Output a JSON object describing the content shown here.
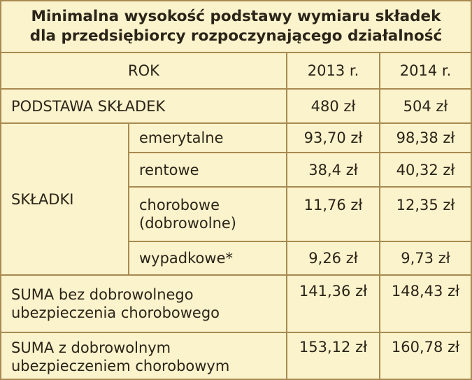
{
  "table": {
    "title_line1": "Minimalna wysokość podstawy wymiaru składek",
    "title_line2": "dla przedsiębiorcy rozpoczynającego działalność",
    "header": {
      "label": "ROK",
      "col2013": "2013 r.",
      "col2014": "2014 r."
    },
    "podstawa": {
      "label": "PODSTAWA SKŁADEK",
      "v2013": "480 zł",
      "v2014": "504 zł"
    },
    "skladki": {
      "label": "SKŁADKI",
      "rows": [
        {
          "label": "emerytalne",
          "v2013": "93,70 zł",
          "v2014": "98,38 zł"
        },
        {
          "label": "rentowe",
          "v2013": "38,4 zł",
          "v2014": "40,32 zł"
        },
        {
          "label_line1": "chorobowe",
          "label_line2": "(dobrowolne)",
          "v2013": "11,76 zł",
          "v2014": "12,35 zł"
        },
        {
          "label": "wypadkowe*",
          "v2013": "9,26 zł",
          "v2014": "9,73 zł"
        }
      ]
    },
    "suma_bez": {
      "label_line1": "SUMA bez dobrowolnego",
      "label_line2": "ubezpieczenia chorobowego",
      "v2013": "141,36 zł",
      "v2014": "148,43 zł"
    },
    "suma_z": {
      "label_line1": "SUMA z dobrowolnym",
      "label_line2": "ubezpieczeniem chorobowym",
      "v2013": "153,12 zł",
      "v2014": "160,78 zł"
    }
  }
}
